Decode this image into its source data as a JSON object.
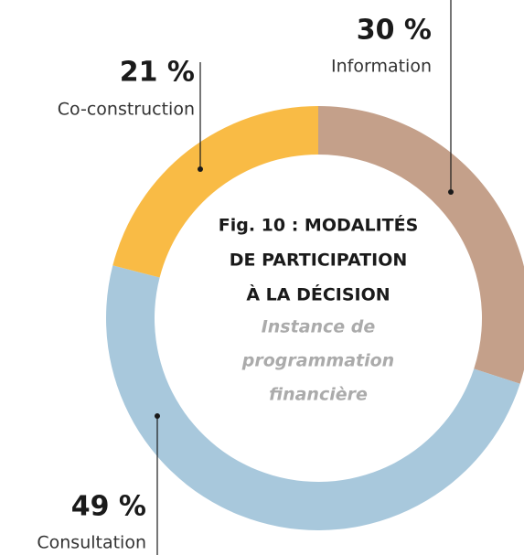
{
  "chart_data": {
    "type": "donut",
    "title": [
      "Fig. 10 : MODALITÉS",
      "DE PARTICIPATION",
      "À LA DÉCISION"
    ],
    "subtitle": [
      "Instance de",
      "programmation",
      "financière"
    ],
    "categories": [
      "Information",
      "Consultation",
      "Co-construction"
    ],
    "values": [
      30,
      49,
      21
    ],
    "value_labels": [
      "30 %",
      "49 %",
      "21 %"
    ],
    "colors": [
      "#c4a08a",
      "#a8c8dc",
      "#f9bb45"
    ]
  }
}
